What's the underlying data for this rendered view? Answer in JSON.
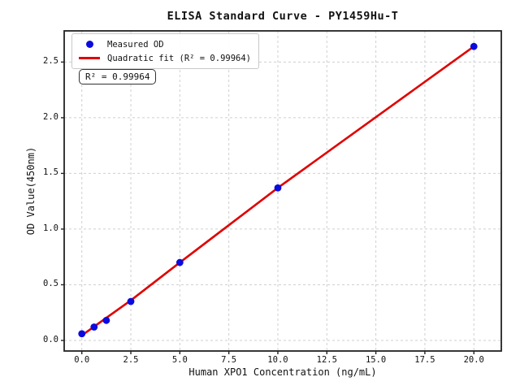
{
  "figure": {
    "title": "ELISA Standard Curve - PY1459Hu-T",
    "background_color": "#ffffff"
  },
  "axes": {
    "x_label": "Human XPO1 Concentration (ng/mL)",
    "y_label": "OD Value(450nm)",
    "x_ticks": [
      "0.0",
      "2.5",
      "5.0",
      "7.5",
      "10.0",
      "12.5",
      "15.0",
      "17.5",
      "20.0"
    ],
    "y_ticks": [
      "0.0",
      "0.5",
      "1.0",
      "1.5",
      "2.0",
      "2.5"
    ],
    "spine_color": "#222222",
    "grid_color": "#cfcfcf"
  },
  "legend": {
    "items": [
      {
        "label": "Measured OD",
        "marker": "circle-icon",
        "color": "#0b0bdf"
      },
      {
        "label": "Quadratic fit (R² = 0.99964)",
        "marker": "line-icon",
        "color": "#e00000"
      }
    ]
  },
  "annotation": {
    "text": "R² = 0.99964"
  },
  "chart_data": {
    "type": "scatter",
    "title": "ELISA Standard Curve - PY1459Hu-T",
    "xlabel": "Human XPO1 Concentration (ng/mL)",
    "ylabel": "OD Value(450nm)",
    "xlim": [
      -0.9,
      21.4
    ],
    "ylim": [
      -0.095,
      2.78
    ],
    "x_tick_values": [
      0,
      2.5,
      5,
      7.5,
      10,
      12.5,
      15,
      17.5,
      20
    ],
    "y_tick_values": [
      0,
      0.5,
      1.0,
      1.5,
      2.0,
      2.5
    ],
    "grid": true,
    "grid_style": "dashed",
    "legend_position": "upper-left",
    "r_squared": 0.99964,
    "series": [
      {
        "name": "Measured OD",
        "type": "scatter",
        "color": "#0b0bdf",
        "marker_radius": 4.4,
        "x": [
          0,
          0.625,
          1.25,
          2.5,
          5,
          10,
          20
        ],
        "y": [
          0.06,
          0.12,
          0.18,
          0.35,
          0.7,
          1.37,
          2.64
        ]
      },
      {
        "name": "Quadratic fit (R² = 0.99964)",
        "type": "line",
        "color": "#e00000",
        "line_width": 2.6,
        "x": [
          0,
          2.5,
          5,
          10,
          20
        ],
        "y": [
          0.045,
          0.36,
          0.7,
          1.37,
          2.64
        ]
      }
    ]
  }
}
